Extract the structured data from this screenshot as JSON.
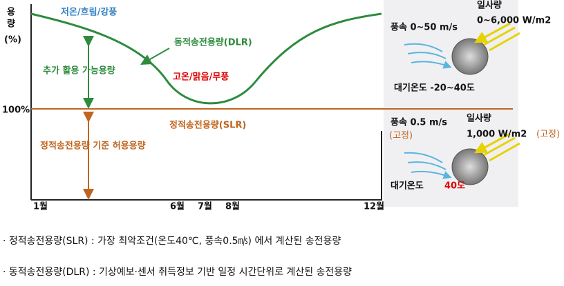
{
  "chart": {
    "y_label": "용량",
    "y_unit": "(%)",
    "reference": "100%",
    "dlr_label": "동적송전용량(DLR)",
    "slr_label": "정적송전용량(SLR)",
    "cold_condition": "저온/흐림/강풍",
    "hot_condition": "고온/맑음/무풍",
    "extra_capacity": "추가 활용 가능용량",
    "slr_capacity": "정적송전용량 기준 허용용량",
    "months": [
      "1월",
      "6월",
      "7월",
      "8월",
      "12월"
    ]
  },
  "dlr_conditions": {
    "wind": "풍속 0~50 m/s",
    "solar_title": "일사량",
    "solar": "0~6,000 W/m2",
    "temp": "대기온도 -20~40도"
  },
  "slr_conditions": {
    "wind": "풍속 0.5 m/s",
    "wind_fixed": "(고정)",
    "solar_title": "일사량",
    "solar": "1,000 W/m2",
    "solar_fixed": "(고정)",
    "temp": "대기온도",
    "temp_value": "40도"
  },
  "notes": [
    "· 정적송전용량(SLR) : 가장 최악조건(온도40℃, 풍속0.5㎧) 에서 계산된 송전용량",
    "· 동적송전용량(DLR) : 기상예보·센서 취득정보 기반 일정 시간단위로 계산된 송전용량"
  ]
}
